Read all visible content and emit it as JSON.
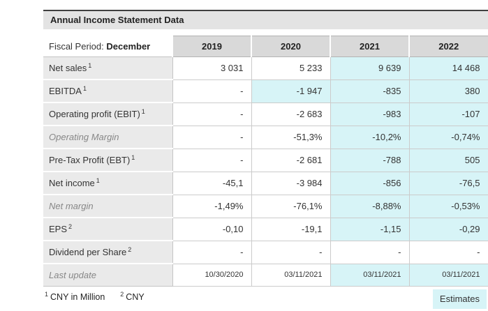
{
  "title": "Annual Income Statement Data",
  "colors": {
    "estimate_bg": "#d7f4f7",
    "year_header_bg": "#d9d9d9",
    "row_label_bg": "#eaeaea",
    "title_bar_bg": "#e3e3e3"
  },
  "table": {
    "period_label": "Fiscal Period:",
    "period_value": "December",
    "years": [
      "2019",
      "2020",
      "2021",
      "2022"
    ],
    "rows": [
      {
        "label": "Net sales",
        "sup": "1",
        "italic": false,
        "date": false,
        "values": [
          "3 031",
          "5 233",
          "9 639",
          "14 468"
        ],
        "estimates": [
          false,
          false,
          true,
          true
        ]
      },
      {
        "label": "EBITDA",
        "sup": "1",
        "italic": false,
        "date": false,
        "values": [
          "-",
          "-1 947",
          "-835",
          "380"
        ],
        "estimates": [
          false,
          true,
          true,
          true
        ]
      },
      {
        "label": "Operating profit (EBIT)",
        "sup": "1",
        "italic": false,
        "date": false,
        "values": [
          "-",
          "-2 683",
          "-983",
          "-107"
        ],
        "estimates": [
          false,
          false,
          true,
          true
        ]
      },
      {
        "label": "Operating Margin",
        "sup": "",
        "italic": true,
        "date": false,
        "values": [
          "-",
          "-51,3%",
          "-10,2%",
          "-0,74%"
        ],
        "estimates": [
          false,
          false,
          true,
          true
        ]
      },
      {
        "label": "Pre-Tax Profit (EBT)",
        "sup": "1",
        "italic": false,
        "date": false,
        "values": [
          "-",
          "-2 681",
          "-788",
          "505"
        ],
        "estimates": [
          false,
          false,
          true,
          true
        ]
      },
      {
        "label": "Net income",
        "sup": "1",
        "italic": false,
        "date": false,
        "values": [
          "-45,1",
          "-3 984",
          "-856",
          "-76,5"
        ],
        "estimates": [
          false,
          false,
          true,
          true
        ]
      },
      {
        "label": "Net margin",
        "sup": "",
        "italic": true,
        "date": false,
        "values": [
          "-1,49%",
          "-76,1%",
          "-8,88%",
          "-0,53%"
        ],
        "estimates": [
          false,
          false,
          true,
          true
        ]
      },
      {
        "label": "EPS",
        "sup": "2",
        "italic": false,
        "date": false,
        "values": [
          "-0,10",
          "-19,1",
          "-1,15",
          "-0,29"
        ],
        "estimates": [
          false,
          false,
          true,
          true
        ]
      },
      {
        "label": "Dividend per Share",
        "sup": "2",
        "italic": false,
        "date": false,
        "values": [
          "-",
          "-",
          "-",
          "-"
        ],
        "estimates": [
          false,
          false,
          false,
          false
        ]
      },
      {
        "label": "Last update",
        "sup": "",
        "italic": true,
        "date": true,
        "values": [
          "10/30/2020",
          "03/11/2021",
          "03/11/2021",
          "03/11/2021"
        ],
        "estimates": [
          false,
          false,
          true,
          true
        ]
      }
    ]
  },
  "footer": {
    "footnotes": [
      {
        "sup": "1",
        "text": "CNY in Million"
      },
      {
        "sup": "2",
        "text": "CNY"
      }
    ],
    "estimates_label": "Estimates"
  }
}
